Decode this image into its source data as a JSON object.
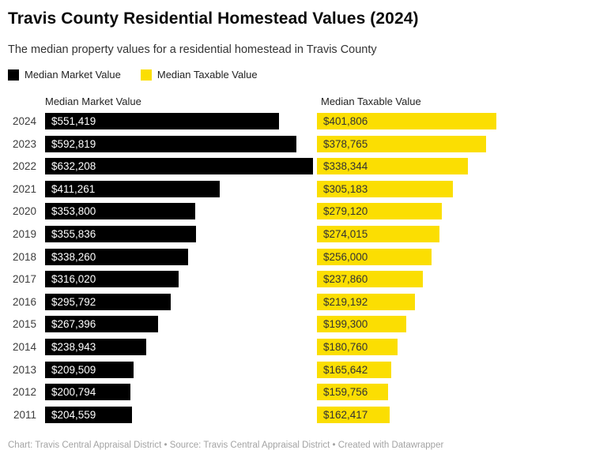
{
  "header": {
    "title": "Travis County Residential Homestead Values (2024)",
    "subtitle": "The median property values for a residential homestead in Travis County"
  },
  "legend": {
    "items": [
      {
        "label": "Median Market Value",
        "color": "#000000"
      },
      {
        "label": "Median Taxable Value",
        "color": "#FBDE02"
      }
    ]
  },
  "chart_data": {
    "type": "bar",
    "orientation": "horizontal",
    "grid": false,
    "legend_position": "top",
    "column_headers": [
      "Median Market Value",
      "Median Taxable Value"
    ],
    "categories": [
      "2024",
      "2023",
      "2022",
      "2021",
      "2020",
      "2019",
      "2018",
      "2017",
      "2016",
      "2015",
      "2014",
      "2013",
      "2012",
      "2011"
    ],
    "series": [
      {
        "name": "Median Market Value",
        "color": "#000000",
        "label_color": "#ffffff",
        "values": [
          551419,
          592819,
          632208,
          411261,
          353800,
          355836,
          338260,
          316020,
          295792,
          267396,
          238943,
          209509,
          200794,
          204559
        ],
        "labels": [
          "$551,419",
          "$592,819",
          "$632,208",
          "$411,261",
          "$353,800",
          "$355,836",
          "$338,260",
          "$316,020",
          "$295,792",
          "$267,396",
          "$238,943",
          "$209,509",
          "$200,794",
          "$204,559"
        ]
      },
      {
        "name": "Median Taxable Value",
        "color": "#FBDE02",
        "label_color": "#333333",
        "values": [
          401806,
          378765,
          338344,
          305183,
          279120,
          274015,
          256000,
          237860,
          219192,
          199300,
          180760,
          165642,
          159756,
          162417
        ],
        "labels": [
          "$401,806",
          "$378,765",
          "$338,344",
          "$305,183",
          "$279,120",
          "$274,015",
          "$256,000",
          "$237,860",
          "$219,192",
          "$199,300",
          "$180,760",
          "$165,642",
          "$159,756",
          "$162,417"
        ]
      }
    ]
  },
  "footer": {
    "text": "Chart: Travis Central Appraisal District • Source: Travis Central Appraisal District • Created with Datawrapper"
  }
}
